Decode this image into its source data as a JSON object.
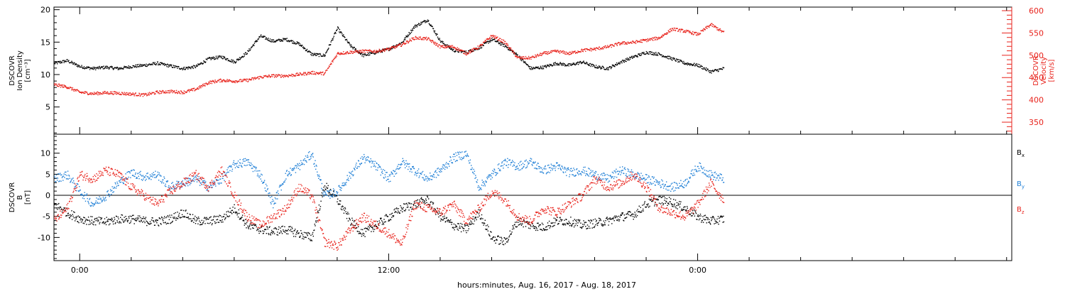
{
  "colors": {
    "density": "#000000",
    "velocity": "#e8231c",
    "bx": "#000000",
    "by": "#1f7fd6",
    "bz": "#e8231c"
  },
  "x_axis": {
    "label": "hours:minutes, Aug. 16, 2017 - Aug. 18, 2017",
    "range_hours": [
      -1.0,
      36.2
    ],
    "major_ticks": [
      {
        "hour": 0,
        "label": "0:00"
      },
      {
        "hour": 12,
        "label": "12:00"
      },
      {
        "hour": 24,
        "label": "0:00"
      }
    ],
    "minor_tick_step_hours": 2
  },
  "chart_data": [
    {
      "type": "scatter",
      "panel": "plasma",
      "left_axis": {
        "label_lines": [
          "DSCOVR",
          "Ion Density",
          "[cm⁻³]"
        ],
        "range": [
          0.8,
          20.4
        ],
        "ticks": [
          {
            "value": 5,
            "label": "5"
          },
          {
            "value": 10,
            "label": "10"
          },
          {
            "value": 15,
            "label": "15"
          },
          {
            "value": 20,
            "label": "20"
          }
        ]
      },
      "right_axis": {
        "label_lines": [
          "DSCOVR",
          "Velocity",
          "[km/s]"
        ],
        "range": [
          323,
          608
        ],
        "ticks": [
          {
            "value": 350,
            "label": "350"
          },
          {
            "value": 400,
            "label": "400"
          },
          {
            "value": 450,
            "label": "450"
          },
          {
            "value": 500,
            "label": "500"
          },
          {
            "value": 550,
            "label": "550"
          },
          {
            "value": 600,
            "label": "600"
          }
        ]
      },
      "series": [
        {
          "axis": "left",
          "color_key": "density",
          "x": [
            -1,
            -0.5,
            0,
            0.5,
            1,
            1.5,
            2,
            2.5,
            3,
            3.5,
            4,
            4.5,
            5,
            5.5,
            6,
            6.5,
            7,
            7.5,
            8,
            8.5,
            9,
            9.5,
            10,
            10.5,
            11,
            11.5,
            12,
            12.5,
            13,
            13.5,
            14,
            14.5,
            15,
            15.5,
            16,
            16.5,
            17,
            17.5,
            18,
            18.5,
            19,
            19.5,
            20,
            20.5,
            21,
            21.5,
            22,
            22.5,
            23,
            23.5,
            24,
            24.5,
            25
          ],
          "y": [
            11.8,
            12.2,
            11.3,
            11.0,
            11.2,
            11.0,
            11.3,
            11.5,
            11.8,
            11.4,
            11.0,
            11.3,
            12.5,
            12.8,
            12.0,
            13.5,
            16.0,
            15.2,
            15.5,
            14.8,
            13.2,
            13.0,
            17.2,
            14.5,
            13.0,
            13.5,
            14.0,
            15.0,
            17.5,
            18.5,
            15.2,
            13.8,
            13.5,
            14.2,
            15.5,
            14.5,
            13.0,
            11.0,
            11.2,
            11.8,
            11.5,
            12.0,
            11.3,
            11.0,
            12.0,
            12.8,
            13.5,
            13.2,
            12.5,
            11.8,
            11.5,
            10.5,
            11.0
          ]
        },
        {
          "axis": "right",
          "color_key": "velocity",
          "x": [
            -1,
            -0.5,
            0,
            0.5,
            1,
            1.5,
            2,
            2.5,
            3,
            3.5,
            4,
            4.5,
            5,
            5.5,
            6,
            6.5,
            7,
            7.5,
            8,
            8.5,
            9,
            9.5,
            10,
            10.5,
            11,
            11.5,
            12,
            12.5,
            13,
            13.5,
            14,
            14.5,
            15,
            15.5,
            16,
            16.5,
            17,
            17.5,
            18,
            18.5,
            19,
            19.5,
            20,
            20.5,
            21,
            21.5,
            22,
            22.5,
            23,
            23.5,
            24,
            24.5,
            25
          ],
          "y": [
            435,
            430,
            418,
            415,
            417,
            416,
            414,
            412,
            418,
            420,
            418,
            425,
            440,
            445,
            443,
            445,
            452,
            455,
            455,
            458,
            462,
            460,
            505,
            508,
            510,
            510,
            515,
            525,
            540,
            538,
            520,
            520,
            505,
            520,
            545,
            530,
            495,
            495,
            505,
            510,
            505,
            512,
            515,
            520,
            528,
            530,
            535,
            540,
            560,
            555,
            548,
            570,
            552
          ]
        }
      ]
    },
    {
      "type": "scatter",
      "panel": "magnetic-field",
      "left_axis": {
        "label_lines": [
          "DSCOVR",
          "B",
          "[nT]"
        ],
        "range": [
          -15.5,
          14.5
        ],
        "ticks": [
          {
            "value": -10,
            "label": "-10"
          },
          {
            "value": -5,
            "label": "-5"
          },
          {
            "value": 0,
            "label": "0"
          },
          {
            "value": 5,
            "label": "5"
          },
          {
            "value": 10,
            "label": "10"
          }
        ]
      },
      "zero_line": 0,
      "series": [
        {
          "name": "B",
          "subscript": "x",
          "color_key": "bx",
          "x": [
            -1,
            -0.5,
            0,
            0.5,
            1,
            1.5,
            2,
            2.5,
            3,
            3.5,
            4,
            4.5,
            5,
            5.5,
            6,
            6.5,
            7,
            7.5,
            8,
            8.5,
            9,
            9.5,
            10,
            10.5,
            11,
            11.5,
            12,
            12.5,
            13,
            13.5,
            14,
            14.5,
            15,
            15.5,
            16,
            16.5,
            17,
            17.5,
            18,
            18.5,
            19,
            19.5,
            20,
            20.5,
            21,
            21.5,
            22,
            22.5,
            23,
            23.5,
            24,
            24.5,
            25
          ],
          "y": [
            -2,
            -4,
            -5.5,
            -6,
            -6.2,
            -5.5,
            -5.5,
            -6,
            -6.2,
            -5.5,
            -4,
            -6,
            -6,
            -5.5,
            -3,
            -7,
            -8,
            -8.5,
            -8,
            -9,
            -10,
            2.5,
            -1,
            -6,
            -9,
            -7,
            -5,
            -3,
            -2,
            -1,
            -5,
            -7,
            -8,
            -4,
            -10,
            -11,
            -6,
            -7,
            -7.5,
            -6,
            -6,
            -7,
            -6.5,
            -6,
            -5,
            -4.5,
            -2,
            -1,
            -1.5,
            -3,
            -5,
            -6,
            -5.5
          ]
        },
        {
          "name": "B",
          "subscript": "y",
          "color_key": "by",
          "x": [
            -1,
            -0.5,
            0,
            0.5,
            1,
            1.5,
            2,
            2.5,
            3,
            3.5,
            4,
            4.5,
            5,
            5.5,
            6,
            6.5,
            7,
            7.5,
            8,
            8.5,
            9,
            9.5,
            10,
            10.5,
            11,
            11.5,
            12,
            12.5,
            13,
            13.5,
            14,
            14.5,
            15,
            15.5,
            16,
            16.5,
            17,
            17.5,
            18,
            18.5,
            19,
            19.5,
            20,
            20.5,
            21,
            21.5,
            22,
            22.5,
            23,
            23.5,
            24,
            24.5,
            25
          ],
          "y": [
            4,
            5,
            1,
            -2,
            0,
            3,
            5.5,
            4.5,
            5,
            2,
            3,
            4,
            2,
            4,
            7.5,
            8,
            5,
            -2,
            5,
            7,
            10,
            0,
            1,
            5,
            9,
            7,
            4,
            8,
            6,
            4,
            6,
            9,
            10,
            2,
            5,
            8,
            7,
            8,
            6,
            7,
            5.5,
            6,
            5,
            4,
            6,
            5,
            4,
            3,
            2,
            3,
            7,
            5,
            4
          ]
        },
        {
          "name": "B",
          "subscript": "z",
          "color_key": "bz",
          "x": [
            -1,
            -0.5,
            0,
            0.5,
            1,
            1.5,
            2,
            2.5,
            3,
            3.5,
            4,
            4.5,
            5,
            5.5,
            6,
            6.5,
            7,
            7.5,
            8,
            8.5,
            9,
            9.5,
            10,
            10.5,
            11,
            11.5,
            12,
            12.5,
            13,
            13.5,
            14,
            14.5,
            15,
            15.5,
            16,
            16.5,
            17,
            17.5,
            18,
            18.5,
            19,
            19.5,
            20,
            20.5,
            21,
            21.5,
            22,
            22.5,
            23,
            23.5,
            24,
            24.5,
            25
          ],
          "y": [
            -6,
            -3,
            5,
            4,
            6,
            5,
            2,
            0,
            -2,
            1,
            3,
            5,
            2,
            6,
            0,
            -5,
            -7,
            -5,
            -3,
            2,
            0,
            -11,
            -12,
            -8,
            -5,
            -7,
            -9,
            -11.5,
            -2,
            -3,
            -4,
            -2,
            -6,
            -3,
            1,
            -1,
            -5,
            -6,
            -3,
            -4,
            -2,
            0,
            4,
            2,
            3,
            5,
            2,
            -3,
            -4,
            -5,
            -2,
            3,
            -1
          ]
        }
      ]
    }
  ]
}
